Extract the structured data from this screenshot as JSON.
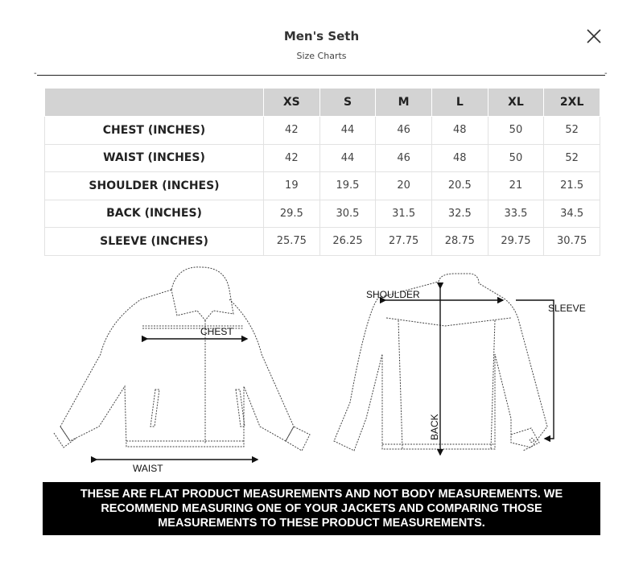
{
  "header": {
    "title": "Men's Seth",
    "subtitle": "Size Charts",
    "close_icon": "close-x-icon"
  },
  "table": {
    "columns": [
      "XS",
      "S",
      "M",
      "L",
      "XL",
      "2XL"
    ],
    "rows": [
      {
        "label": "CHEST (INCHES)",
        "values": [
          "42",
          "44",
          "46",
          "48",
          "50",
          "52"
        ]
      },
      {
        "label": "WAIST (INCHES)",
        "values": [
          "42",
          "44",
          "46",
          "48",
          "50",
          "52"
        ]
      },
      {
        "label": "SHOULDER (INCHES)",
        "values": [
          "19",
          "19.5",
          "20",
          "20.5",
          "21",
          "21.5"
        ]
      },
      {
        "label": "BACK (INCHES)",
        "values": [
          "29.5",
          "30.5",
          "31.5",
          "32.5",
          "33.5",
          "34.5"
        ]
      },
      {
        "label": "SLEEVE (INCHES)",
        "values": [
          "25.75",
          "26.25",
          "27.75",
          "28.75",
          "29.75",
          "30.75"
        ]
      }
    ]
  },
  "diagram": {
    "chest": "CHEST",
    "waist": "WAIST",
    "shoulder": "SHOULDER",
    "sleeve": "SLEEVE",
    "back": "BACK"
  },
  "notice": "THESE ARE FLAT PRODUCT MEASUREMENTS AND NOT BODY MEASUREMENTS. WE RECOMMEND MEASURING ONE OF YOUR JACKETS AND COMPARING THOSE MEASUREMENTS TO THESE PRODUCT MEASUREMENTS."
}
